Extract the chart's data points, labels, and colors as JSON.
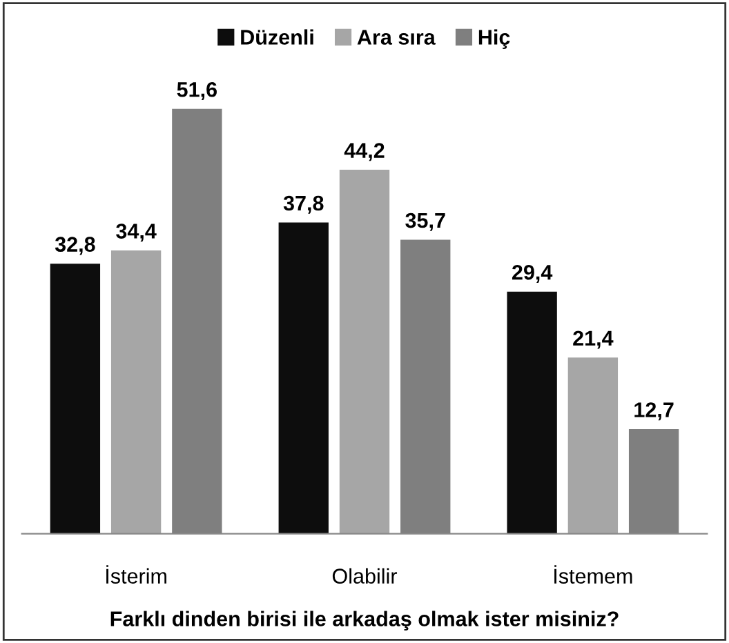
{
  "chart_data": {
    "type": "bar",
    "xlabel": "Farklı dinden birisi ile arkadaş olmak ister misiniz?",
    "categories": [
      "İsterim",
      "Olabilir",
      "İstemem"
    ],
    "series": [
      {
        "name": "Düzenli",
        "color": "#0d0d0d",
        "values": [
          32.8,
          37.8,
          29.4
        ],
        "value_labels": [
          "32,8",
          "37,8",
          "29,4"
        ]
      },
      {
        "name": "Ara sıra",
        "color": "#a6a6a6",
        "values": [
          34.4,
          44.2,
          21.4
        ],
        "value_labels": [
          "34,4",
          "44,2",
          "21,4"
        ]
      },
      {
        "name": "Hiç",
        "color": "#7f7f7f",
        "values": [
          51.6,
          35.7,
          12.7
        ],
        "value_labels": [
          "51,6",
          "35,7",
          "12,7"
        ]
      }
    ],
    "legend": "top",
    "grid": false
  }
}
